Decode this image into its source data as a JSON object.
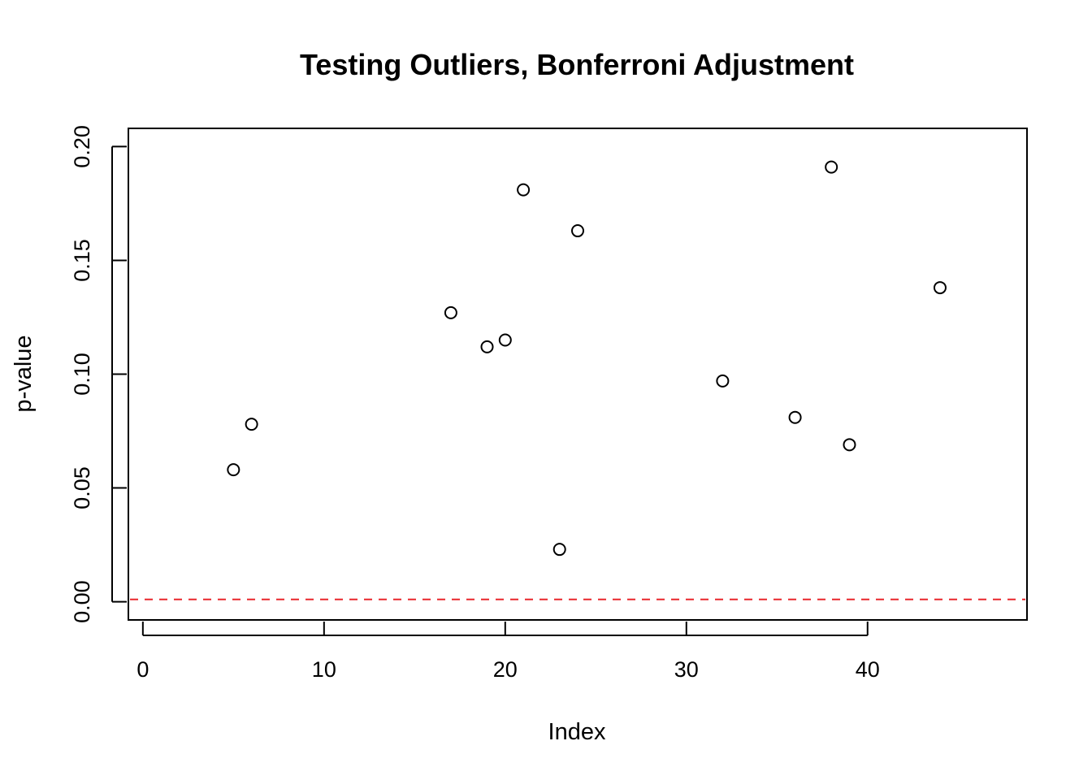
{
  "chart_data": {
    "type": "scatter",
    "title": "Testing Outliers, Bonferroni Adjustment",
    "xlabel": "Index",
    "ylabel": "p-value",
    "xlim": [
      -0.8,
      48.8
    ],
    "ylim": [
      -0.008,
      0.208
    ],
    "xticks": [
      0,
      10,
      20,
      30,
      40
    ],
    "xtick_labels": [
      "0",
      "10",
      "20",
      "30",
      "40"
    ],
    "yticks": [
      0,
      0.05,
      0.1,
      0.15,
      0.2
    ],
    "ytick_labels": [
      "0.00",
      "0.05",
      "0.10",
      "0.15",
      "0.20"
    ],
    "grid": false,
    "points": [
      {
        "x": 5,
        "y": 0.058
      },
      {
        "x": 6,
        "y": 0.078
      },
      {
        "x": 17,
        "y": 0.127
      },
      {
        "x": 19,
        "y": 0.112
      },
      {
        "x": 20,
        "y": 0.115
      },
      {
        "x": 21,
        "y": 0.181
      },
      {
        "x": 23,
        "y": 0.023
      },
      {
        "x": 24,
        "y": 0.163
      },
      {
        "x": 32,
        "y": 0.097
      },
      {
        "x": 36,
        "y": 0.081
      },
      {
        "x": 38,
        "y": 0.191
      },
      {
        "x": 39,
        "y": 0.069
      },
      {
        "x": 44,
        "y": 0.138
      }
    ],
    "reference_line": {
      "y": 0.001,
      "color": "#e8262b",
      "style": "dashed"
    },
    "colors": {
      "points": "#000000",
      "axes": "#000000",
      "reference_line": "#e8262b"
    }
  }
}
